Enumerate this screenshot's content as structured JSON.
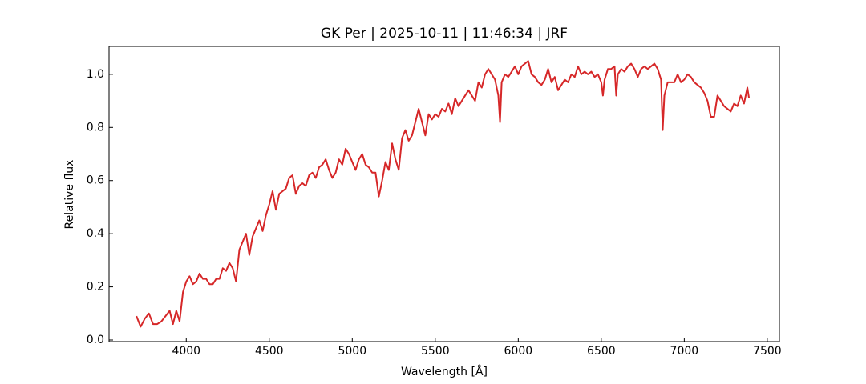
{
  "chart_data": {
    "type": "line",
    "title": "GK Per | 2025-10-11 | 11:46:34 | JRF",
    "xlabel": "Wavelength [Å]",
    "ylabel": "Relative flux",
    "xlim": [
      3535,
      7573
    ],
    "ylim": [
      -0.006,
      1.105
    ],
    "xticks": [
      4000,
      4500,
      5000,
      5500,
      6000,
      6500,
      7000,
      7500
    ],
    "yticks": [
      {
        "value": 0,
        "label": "0.0"
      },
      0.2,
      0.4,
      0.6,
      0.8,
      {
        "value": 1,
        "label": "1.0"
      }
    ],
    "grid": false,
    "series": [
      {
        "color": "#d62728",
        "x": [
          3700,
          3725,
          3750,
          3775,
          3800,
          3825,
          3850,
          3875,
          3900,
          3920,
          3940,
          3960,
          3980,
          4000,
          4020,
          4040,
          4060,
          4080,
          4100,
          4120,
          4140,
          4160,
          4180,
          4200,
          4220,
          4240,
          4260,
          4280,
          4300,
          4320,
          4340,
          4360,
          4380,
          4400,
          4420,
          4440,
          4460,
          4480,
          4500,
          4520,
          4540,
          4560,
          4580,
          4600,
          4620,
          4640,
          4660,
          4680,
          4700,
          4720,
          4740,
          4760,
          4780,
          4800,
          4820,
          4840,
          4860,
          4880,
          4900,
          4920,
          4940,
          4960,
          4980,
          5000,
          5020,
          5040,
          5060,
          5080,
          5100,
          5120,
          5140,
          5160,
          5180,
          5200,
          5220,
          5240,
          5260,
          5280,
          5300,
          5320,
          5340,
          5360,
          5380,
          5400,
          5420,
          5440,
          5460,
          5480,
          5500,
          5520,
          5540,
          5560,
          5580,
          5600,
          5620,
          5640,
          5660,
          5680,
          5700,
          5720,
          5740,
          5760,
          5780,
          5800,
          5820,
          5840,
          5860,
          5880,
          5890,
          5900,
          5920,
          5940,
          5960,
          5980,
          6000,
          6020,
          6040,
          6060,
          6080,
          6100,
          6120,
          6140,
          6160,
          6180,
          6200,
          6220,
          6240,
          6260,
          6280,
          6300,
          6320,
          6340,
          6360,
          6380,
          6400,
          6420,
          6440,
          6460,
          6480,
          6500,
          6510,
          6520,
          6540,
          6560,
          6580,
          6590,
          6600,
          6620,
          6640,
          6660,
          6680,
          6700,
          6720,
          6740,
          6760,
          6780,
          6800,
          6820,
          6840,
          6860,
          6870,
          6880,
          6900,
          6920,
          6940,
          6960,
          6980,
          7000,
          7020,
          7040,
          7060,
          7080,
          7100,
          7120,
          7140,
          7160,
          7180,
          7200,
          7220,
          7240,
          7260,
          7280,
          7300,
          7320,
          7340,
          7360,
          7380,
          7390
        ],
        "values": [
          0.09,
          0.05,
          0.08,
          0.1,
          0.06,
          0.06,
          0.07,
          0.09,
          0.11,
          0.06,
          0.11,
          0.07,
          0.18,
          0.22,
          0.24,
          0.21,
          0.22,
          0.25,
          0.23,
          0.23,
          0.21,
          0.21,
          0.23,
          0.23,
          0.27,
          0.26,
          0.29,
          0.27,
          0.22,
          0.34,
          0.37,
          0.4,
          0.32,
          0.39,
          0.42,
          0.45,
          0.41,
          0.47,
          0.51,
          0.56,
          0.49,
          0.55,
          0.56,
          0.57,
          0.61,
          0.62,
          0.55,
          0.58,
          0.59,
          0.58,
          0.62,
          0.63,
          0.61,
          0.65,
          0.66,
          0.68,
          0.64,
          0.61,
          0.63,
          0.68,
          0.66,
          0.72,
          0.7,
          0.67,
          0.64,
          0.68,
          0.7,
          0.66,
          0.65,
          0.63,
          0.63,
          0.54,
          0.6,
          0.67,
          0.64,
          0.74,
          0.68,
          0.64,
          0.76,
          0.79,
          0.75,
          0.77,
          0.82,
          0.87,
          0.82,
          0.77,
          0.85,
          0.83,
          0.85,
          0.84,
          0.87,
          0.86,
          0.89,
          0.85,
          0.91,
          0.88,
          0.9,
          0.92,
          0.94,
          0.92,
          0.9,
          0.97,
          0.95,
          1.0,
          1.02,
          1.0,
          0.98,
          0.92,
          0.82,
          0.97,
          1.0,
          0.99,
          1.01,
          1.03,
          1.0,
          1.03,
          1.04,
          1.05,
          1.0,
          0.99,
          0.97,
          0.96,
          0.98,
          1.02,
          0.97,
          0.99,
          0.94,
          0.96,
          0.98,
          0.97,
          1.0,
          0.99,
          1.03,
          1.0,
          1.01,
          1.0,
          1.01,
          0.99,
          1.0,
          0.97,
          0.92,
          0.98,
          1.02,
          1.02,
          1.03,
          0.92,
          1.0,
          1.02,
          1.01,
          1.03,
          1.04,
          1.02,
          0.99,
          1.02,
          1.03,
          1.02,
          1.03,
          1.04,
          1.02,
          0.98,
          0.79,
          0.92,
          0.97,
          0.97,
          0.97,
          1.0,
          0.97,
          0.98,
          1.0,
          0.99,
          0.97,
          0.96,
          0.95,
          0.93,
          0.9,
          0.84,
          0.84,
          0.92,
          0.9,
          0.88,
          0.87,
          0.86,
          0.89,
          0.88,
          0.92,
          0.89,
          0.95,
          0.91
        ]
      }
    ]
  }
}
